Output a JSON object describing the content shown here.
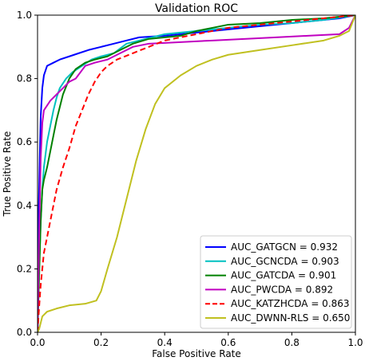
{
  "chart_data": {
    "type": "line",
    "title": "Validation ROC",
    "xlabel": "False Positive Rate",
    "ylabel": "True Positive Rate",
    "xlim": [
      0,
      1
    ],
    "ylim": [
      0,
      1
    ],
    "xticks": [
      "0.0",
      "0.2",
      "0.4",
      "0.6",
      "0.8",
      "1.0"
    ],
    "yticks": [
      "0.0",
      "0.2",
      "0.4",
      "0.6",
      "0.8",
      "1.0"
    ],
    "grid": false,
    "legend_position": "lower-right",
    "series": [
      {
        "name": "AUC_GATGCN = 0.932",
        "color": "#0000ff",
        "dash": "solid",
        "points": [
          [
            0,
            0
          ],
          [
            0.003,
            0.35
          ],
          [
            0.007,
            0.55
          ],
          [
            0.01,
            0.68
          ],
          [
            0.015,
            0.77
          ],
          [
            0.02,
            0.81
          ],
          [
            0.03,
            0.84
          ],
          [
            0.05,
            0.85
          ],
          [
            0.07,
            0.86
          ],
          [
            0.1,
            0.87
          ],
          [
            0.13,
            0.88
          ],
          [
            0.16,
            0.89
          ],
          [
            0.2,
            0.9
          ],
          [
            0.24,
            0.91
          ],
          [
            0.28,
            0.92
          ],
          [
            0.32,
            0.93
          ],
          [
            0.4,
            0.935
          ],
          [
            0.5,
            0.945
          ],
          [
            0.6,
            0.955
          ],
          [
            0.7,
            0.965
          ],
          [
            0.8,
            0.975
          ],
          [
            0.9,
            0.985
          ],
          [
            0.95,
            0.99
          ],
          [
            1,
            1
          ]
        ]
      },
      {
        "name": "AUC_GCNCDA = 0.903",
        "color": "#00c0c0",
        "dash": "solid",
        "points": [
          [
            0,
            0
          ],
          [
            0.005,
            0.2
          ],
          [
            0.01,
            0.35
          ],
          [
            0.015,
            0.45
          ],
          [
            0.02,
            0.52
          ],
          [
            0.03,
            0.6
          ],
          [
            0.04,
            0.65
          ],
          [
            0.05,
            0.7
          ],
          [
            0.06,
            0.74
          ],
          [
            0.07,
            0.77
          ],
          [
            0.09,
            0.8
          ],
          [
            0.11,
            0.82
          ],
          [
            0.14,
            0.84
          ],
          [
            0.17,
            0.86
          ],
          [
            0.2,
            0.87
          ],
          [
            0.24,
            0.88
          ],
          [
            0.28,
            0.91
          ],
          [
            0.32,
            0.92
          ],
          [
            0.4,
            0.94
          ],
          [
            0.5,
            0.95
          ],
          [
            0.6,
            0.96
          ],
          [
            0.7,
            0.97
          ],
          [
            0.8,
            0.975
          ],
          [
            0.9,
            0.985
          ],
          [
            1,
            1
          ]
        ]
      },
      {
        "name": "AUC_GATCDA = 0.901",
        "color": "#008000",
        "dash": "solid",
        "points": [
          [
            0,
            0
          ],
          [
            0.01,
            0.35
          ],
          [
            0.015,
            0.45
          ],
          [
            0.02,
            0.48
          ],
          [
            0.03,
            0.52
          ],
          [
            0.04,
            0.57
          ],
          [
            0.05,
            0.62
          ],
          [
            0.06,
            0.67
          ],
          [
            0.07,
            0.71
          ],
          [
            0.08,
            0.75
          ],
          [
            0.1,
            0.8
          ],
          [
            0.12,
            0.83
          ],
          [
            0.15,
            0.85
          ],
          [
            0.18,
            0.86
          ],
          [
            0.22,
            0.87
          ],
          [
            0.26,
            0.89
          ],
          [
            0.3,
            0.91
          ],
          [
            0.35,
            0.925
          ],
          [
            0.45,
            0.935
          ],
          [
            0.5,
            0.95
          ],
          [
            0.55,
            0.96
          ],
          [
            0.6,
            0.97
          ],
          [
            0.7,
            0.975
          ],
          [
            0.75,
            0.98
          ],
          [
            0.8,
            0.985
          ],
          [
            0.9,
            0.99
          ],
          [
            1,
            1
          ]
        ]
      },
      {
        "name": "AUC_PWCDA = 0.892",
        "color": "#c000c0",
        "dash": "solid",
        "points": [
          [
            0,
            0
          ],
          [
            0.005,
            0.3
          ],
          [
            0.01,
            0.55
          ],
          [
            0.015,
            0.66
          ],
          [
            0.02,
            0.7
          ],
          [
            0.04,
            0.73
          ],
          [
            0.06,
            0.75
          ],
          [
            0.08,
            0.77
          ],
          [
            0.1,
            0.79
          ],
          [
            0.12,
            0.8
          ],
          [
            0.15,
            0.84
          ],
          [
            0.18,
            0.85
          ],
          [
            0.22,
            0.86
          ],
          [
            0.26,
            0.88
          ],
          [
            0.3,
            0.9
          ],
          [
            0.35,
            0.91
          ],
          [
            0.45,
            0.915
          ],
          [
            0.55,
            0.92
          ],
          [
            0.65,
            0.925
          ],
          [
            0.75,
            0.93
          ],
          [
            0.85,
            0.935
          ],
          [
            0.95,
            0.94
          ],
          [
            0.98,
            0.96
          ],
          [
            1,
            1
          ]
        ]
      },
      {
        "name": "AUC_KATZHCDA = 0.863",
        "color": "#ff0000",
        "dash": "dashed",
        "points": [
          [
            0,
            0
          ],
          [
            0.005,
            0.08
          ],
          [
            0.01,
            0.15
          ],
          [
            0.015,
            0.2
          ],
          [
            0.02,
            0.25
          ],
          [
            0.03,
            0.3
          ],
          [
            0.04,
            0.35
          ],
          [
            0.05,
            0.4
          ],
          [
            0.06,
            0.45
          ],
          [
            0.08,
            0.52
          ],
          [
            0.1,
            0.58
          ],
          [
            0.12,
            0.65
          ],
          [
            0.14,
            0.7
          ],
          [
            0.16,
            0.75
          ],
          [
            0.18,
            0.79
          ],
          [
            0.2,
            0.82
          ],
          [
            0.22,
            0.84
          ],
          [
            0.25,
            0.86
          ],
          [
            0.3,
            0.88
          ],
          [
            0.35,
            0.9
          ],
          [
            0.4,
            0.92
          ],
          [
            0.5,
            0.94
          ],
          [
            0.6,
            0.96
          ],
          [
            0.7,
            0.97
          ],
          [
            0.8,
            0.98
          ],
          [
            0.9,
            0.99
          ],
          [
            1,
            1
          ]
        ]
      },
      {
        "name": "AUC_DWNN-RLS = 0.650",
        "color": "#c0c020",
        "dash": "solid",
        "points": [
          [
            0,
            0
          ],
          [
            0.005,
            0.01
          ],
          [
            0.01,
            0.03
          ],
          [
            0.015,
            0.05
          ],
          [
            0.03,
            0.065
          ],
          [
            0.06,
            0.075
          ],
          [
            0.1,
            0.085
          ],
          [
            0.15,
            0.09
          ],
          [
            0.185,
            0.1
          ],
          [
            0.2,
            0.13
          ],
          [
            0.22,
            0.2
          ],
          [
            0.25,
            0.3
          ],
          [
            0.28,
            0.42
          ],
          [
            0.31,
            0.54
          ],
          [
            0.34,
            0.64
          ],
          [
            0.37,
            0.72
          ],
          [
            0.4,
            0.77
          ],
          [
            0.45,
            0.81
          ],
          [
            0.5,
            0.84
          ],
          [
            0.55,
            0.86
          ],
          [
            0.6,
            0.875
          ],
          [
            0.7,
            0.89
          ],
          [
            0.8,
            0.905
          ],
          [
            0.9,
            0.92
          ],
          [
            0.95,
            0.935
          ],
          [
            0.98,
            0.95
          ],
          [
            1,
            1
          ]
        ]
      }
    ]
  }
}
